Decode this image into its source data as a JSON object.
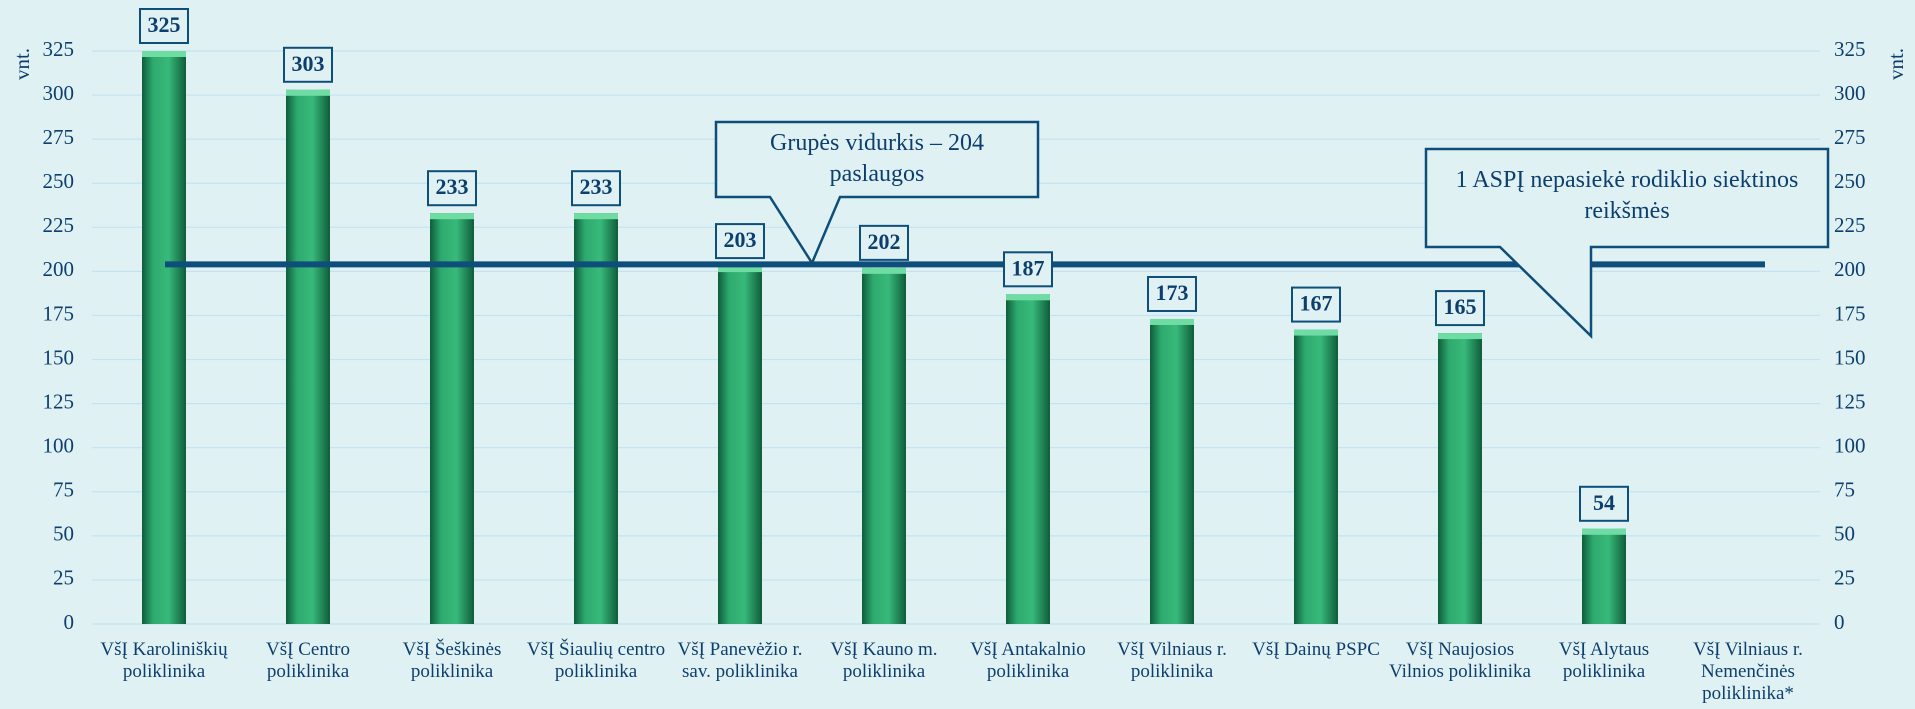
{
  "chart_data": {
    "type": "bar",
    "y_label": "vnt.",
    "categories": [
      "VšĮ Karoliniškių poliklinika",
      "VšĮ Centro poliklinika",
      "VšĮ Šeškinės poliklinika",
      "VšĮ Šiaulių centro poliklinika",
      "VšĮ Panevėžio r. sav. poliklinika",
      "VšĮ Kauno m. poliklinika",
      "VšĮ Antakalnio poliklinika",
      "VšĮ Vilniaus r. poliklinika",
      "VšĮ Dainų PSPC",
      "VšĮ Naujosios Vilnios poliklinika",
      "VšĮ Alytaus poliklinika",
      "VšĮ Vilniaus r. Nemenčinės poliklinika*"
    ],
    "values": [
      325,
      303,
      233,
      233,
      203,
      202,
      187,
      173,
      167,
      165,
      54,
      null
    ],
    "color": "#2eaa6e",
    "label_colors": [
      "#0d3f6e",
      "#0d3f6e",
      "#0d3f6e",
      "#0d3f6e",
      "#0d3f6e",
      "#0d3f6e",
      "#0d3f6e",
      "#0d3f6e",
      "#0d3f6e",
      "#0d3f6e",
      "#c00000",
      null
    ],
    "reference_line": {
      "value": 204,
      "color": "#0d4f7a"
    },
    "annotations": [
      "Grupės vidurkis – 204 paslaugos",
      "1 ASPĮ nepasiekė rodiklio siektinos reikšmės"
    ],
    "ylim": [
      0,
      325
    ],
    "yticks": [
      0,
      25,
      50,
      75,
      100,
      125,
      150,
      175,
      200,
      225,
      250,
      275,
      300,
      325
    ],
    "grid": true
  }
}
